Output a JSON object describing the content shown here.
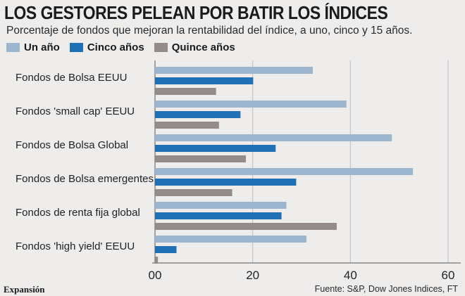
{
  "title": "LOS GESTORES PELEAN POR BATIR LOS ÍNDICES",
  "subtitle": "Porcentaje de fondos que mejoran la rentabilidad del índice, a uno, cinco y 15 años.",
  "brand": "Expansión",
  "source": "Fuente: S&P, Dow Jones Indices, FT",
  "colors": {
    "background": "#eeedec",
    "un_ano": "#9db6cf",
    "cinco_anos": "#1f70b4",
    "quince_anos": "#948c88"
  },
  "chart_data": {
    "type": "bar",
    "orientation": "horizontal",
    "title": "LOS GESTORES PELEAN POR BATIR LOS ÍNDICES",
    "subtitle": "Porcentaje de fondos que mejoran la rentabilidad del índice, a uno, cinco y 15 años.",
    "categories": [
      "Fondos de Bolsa EEUU",
      "Fondos 'small cap' EEUU",
      "Fondos de Bolsa Global",
      "Fondos de Bolsa emergentes",
      "Fondos de renta fija global",
      "Fondos 'high yield' EEUU"
    ],
    "series": [
      {
        "name": "Un año",
        "color": "#9db6cf",
        "values": [
          32.3,
          39.2,
          48.5,
          52.8,
          26.9,
          31.0
        ]
      },
      {
        "name": "Cinco años",
        "color": "#1f70b4",
        "values": [
          20.1,
          17.5,
          24.7,
          28.9,
          25.9,
          4.4
        ]
      },
      {
        "name": "Quince años",
        "color": "#948c88",
        "values": [
          12.5,
          13.1,
          18.6,
          15.8,
          37.2,
          0.6
        ]
      }
    ],
    "xlim": [
      0,
      60
    ],
    "xticks": [
      0,
      20,
      40,
      60
    ],
    "xtick_labels": [
      "00",
      "20",
      "40",
      "60"
    ],
    "grid": true,
    "legend": "top-left"
  }
}
